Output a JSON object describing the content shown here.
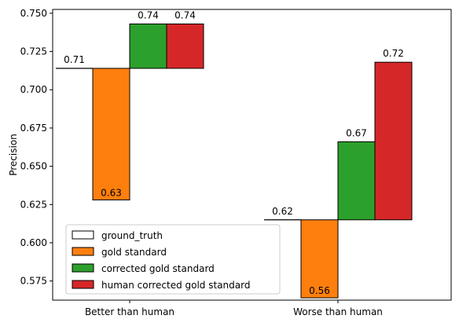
{
  "chart_data": {
    "type": "bar",
    "title": "",
    "xlabel": "",
    "ylabel": "Precision",
    "ylim": [
      0.5625,
      0.7525
    ],
    "yticks": [
      0.575,
      0.6,
      0.625,
      0.65,
      0.675,
      0.7,
      0.725,
      0.75
    ],
    "ytick_labels": [
      "0.575",
      "0.600",
      "0.625",
      "0.650",
      "0.675",
      "0.700",
      "0.725",
      "0.750"
    ],
    "categories": [
      "Better than human",
      "Worse than human"
    ],
    "baseline_values": [
      0.714,
      0.615
    ],
    "baseline_labels": [
      "0.71",
      "0.62"
    ],
    "series": [
      {
        "name": "gold standard",
        "color": "#ff7f0e",
        "values": [
          0.628,
          0.564
        ],
        "labels": [
          "0.63",
          "0.56"
        ]
      },
      {
        "name": "corrected gold standard",
        "color": "#2ca02c",
        "values": [
          0.743,
          0.666
        ],
        "labels": [
          "0.74",
          "0.67"
        ]
      },
      {
        "name": "human corrected gold standard",
        "color": "#d62728",
        "values": [
          0.743,
          0.718
        ],
        "labels": [
          "0.74",
          "0.72"
        ]
      }
    ],
    "legend": {
      "placement": "lower-left",
      "entries": [
        {
          "label": "ground_truth",
          "color": "#ffffff"
        },
        {
          "label": "gold standard",
          "color": "#ff7f0e"
        },
        {
          "label": "corrected gold standard",
          "color": "#2ca02c"
        },
        {
          "label": "human corrected gold standard",
          "color": "#d62728"
        }
      ]
    },
    "grid": false
  }
}
